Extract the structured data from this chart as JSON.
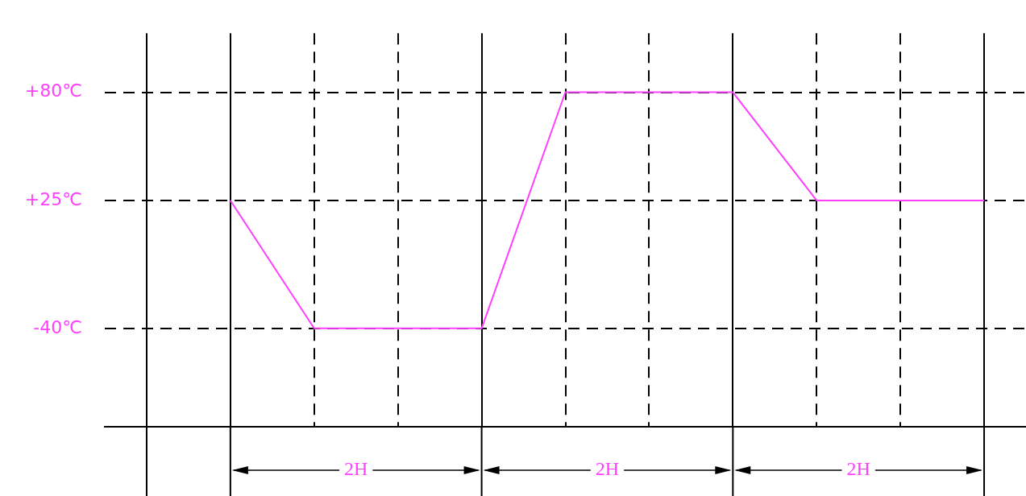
{
  "chart_data": {
    "type": "line",
    "categories": [
      null,
      null,
      null,
      null,
      null,
      null,
      null,
      null,
      null,
      null,
      null
    ],
    "series": [
      {
        "color": "#ff40ff",
        "values": [
          null,
          25,
          -40,
          -40,
          -40,
          80,
          80,
          80,
          25,
          25,
          25
        ]
      }
    ],
    "ylim": [
      -90,
      110
    ],
    "yticks": [
      {
        "value": -40,
        "label": "-40℃"
      },
      {
        "value": 25,
        "label": "+25℃"
      },
      {
        "value": 80,
        "label": "+80℃"
      }
    ],
    "grid": true,
    "marker": "none",
    "line_style": "solid",
    "legend": false,
    "annotations": [
      "2H",
      "2H",
      "2H"
    ]
  }
}
